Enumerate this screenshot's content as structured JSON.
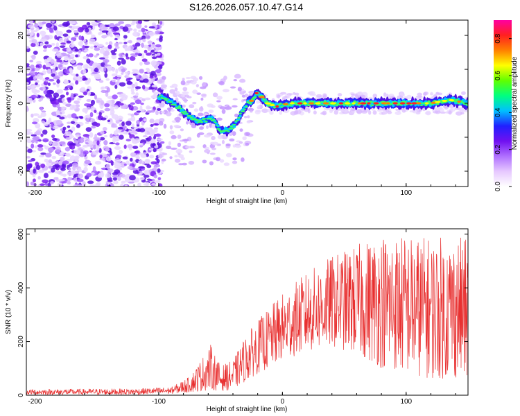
{
  "title": "S126.2026.057.10.47.G14",
  "chart_data": [
    {
      "type": "heatmap",
      "name": "spectrogram",
      "xlabel": "Height of straight line (km)",
      "ylabel": "Frequency (Hz)",
      "xlim": [
        -207,
        150
      ],
      "ylim": [
        -24.5,
        24.5
      ],
      "xticks": [
        -200,
        -100,
        0,
        100
      ],
      "yticks": [
        -20,
        -10,
        0,
        10,
        20
      ],
      "noise_region_x": [
        -207,
        -97
      ],
      "ridge": [
        {
          "x": -100,
          "y": 2
        },
        {
          "x": -92,
          "y": 1
        },
        {
          "x": -85,
          "y": -1
        },
        {
          "x": -78,
          "y": -3
        },
        {
          "x": -70,
          "y": -5
        },
        {
          "x": -62,
          "y": -5
        },
        {
          "x": -58,
          "y": -4
        },
        {
          "x": -54,
          "y": -6
        },
        {
          "x": -50,
          "y": -8
        },
        {
          "x": -45,
          "y": -8
        },
        {
          "x": -40,
          "y": -7
        },
        {
          "x": -36,
          "y": -5
        },
        {
          "x": -32,
          "y": -2
        },
        {
          "x": -28,
          "y": 0
        },
        {
          "x": -24,
          "y": 1
        },
        {
          "x": -21,
          "y": 3
        },
        {
          "x": -17,
          "y": 2
        },
        {
          "x": -12,
          "y": 0
        },
        {
          "x": -5,
          "y": -1
        },
        {
          "x": 5,
          "y": 0
        },
        {
          "x": 20,
          "y": 0
        },
        {
          "x": 40,
          "y": 0
        },
        {
          "x": 60,
          "y": 0
        },
        {
          "x": 80,
          "y": 0
        },
        {
          "x": 100,
          "y": 0
        },
        {
          "x": 120,
          "y": 0
        },
        {
          "x": 135,
          "y": 1
        },
        {
          "x": 150,
          "y": 0
        }
      ]
    },
    {
      "type": "line",
      "name": "snr",
      "xlabel": "Height of straight line (km)",
      "ylabel": "SNR (10 * v/v)",
      "xlim": [
        -207,
        150
      ],
      "ylim": [
        0,
        620
      ],
      "xticks": [
        -200,
        -100,
        0,
        100
      ],
      "yticks": [
        0,
        200,
        400,
        600
      ],
      "color": "#e83030",
      "envelope": [
        {
          "x": -207,
          "lo": 2,
          "hi": 22
        },
        {
          "x": -120,
          "lo": 2,
          "hi": 25
        },
        {
          "x": -90,
          "lo": 5,
          "hi": 30
        },
        {
          "x": -75,
          "lo": 10,
          "hi": 70
        },
        {
          "x": -65,
          "lo": 15,
          "hi": 140
        },
        {
          "x": -58,
          "lo": 20,
          "hi": 190
        },
        {
          "x": -50,
          "lo": 15,
          "hi": 110
        },
        {
          "x": -40,
          "lo": 20,
          "hi": 130
        },
        {
          "x": -30,
          "lo": 50,
          "hi": 220
        },
        {
          "x": -20,
          "lo": 80,
          "hi": 280
        },
        {
          "x": -10,
          "lo": 100,
          "hi": 330
        },
        {
          "x": 0,
          "lo": 130,
          "hi": 380
        },
        {
          "x": 20,
          "lo": 160,
          "hi": 460
        },
        {
          "x": 40,
          "lo": 180,
          "hi": 520
        },
        {
          "x": 60,
          "lo": 150,
          "hi": 560
        },
        {
          "x": 80,
          "lo": 100,
          "hi": 610
        },
        {
          "x": 100,
          "lo": 80,
          "hi": 600
        },
        {
          "x": 120,
          "lo": 60,
          "hi": 590
        },
        {
          "x": 140,
          "lo": 60,
          "hi": 600
        },
        {
          "x": 150,
          "lo": 60,
          "hi": 580
        }
      ]
    }
  ],
  "colorbar": {
    "label": "Normalized spectral amplitude",
    "range": [
      0,
      0.9
    ],
    "ticks": [
      "0.0",
      "0.2",
      "0.4",
      "0.6",
      "0.8"
    ],
    "tick_values": [
      0,
      0.2,
      0.4,
      0.6,
      0.8
    ],
    "colors": [
      "#ffffff",
      "#e6c8ff",
      "#b070ff",
      "#7010f0",
      "#2020ff",
      "#00c0ff",
      "#00ff80",
      "#60ff00",
      "#ffff00",
      "#ff8000",
      "#ff2020",
      "#ff00a0"
    ]
  }
}
